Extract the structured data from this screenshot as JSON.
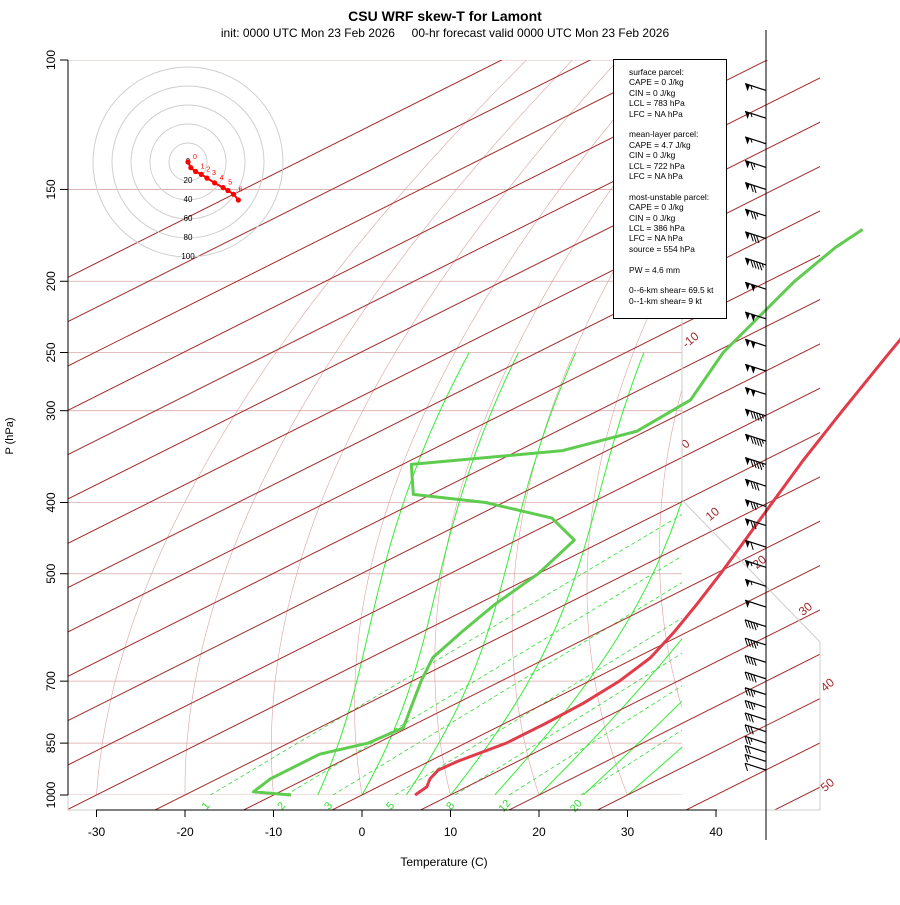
{
  "chart_data": {
    "type": "line",
    "title": "CSU WRF skew-T for Lamont",
    "subtitle": "init: 0000 UTC Mon 23 Feb 2026     00-hr forecast valid 0000 UTC Mon 23 Feb 2026",
    "xlabel": "Temperature (C)",
    "ylabel": "P (hPa)",
    "x_ticks": [
      -30,
      -20,
      -10,
      0,
      10,
      20,
      30,
      40
    ],
    "y_ticks": [
      100,
      150,
      200,
      250,
      300,
      400,
      500,
      700,
      850,
      1000
    ],
    "xlim": [
      -33,
      44
    ],
    "ylim": [
      1000,
      100
    ],
    "skew_deg_per_log_pressure": 72,
    "isotherm_labels": [
      -10,
      0,
      10,
      20,
      30,
      40,
      50
    ],
    "mixing_ratio_labels": [
      1,
      2,
      3,
      5,
      8,
      12,
      20
    ],
    "series": [
      {
        "name": "Temperature",
        "color": "#e03c4a",
        "points": [
          {
            "p": 1000,
            "t": 6.0
          },
          {
            "p": 975,
            "t": 5.5
          },
          {
            "p": 950,
            "t": 4.0
          },
          {
            "p": 925,
            "t": 3.0
          },
          {
            "p": 900,
            "t": 3.2
          },
          {
            "p": 850,
            "t": 4.6
          },
          {
            "p": 800,
            "t": 4.6
          },
          {
            "p": 750,
            "t": 4.3
          },
          {
            "p": 700,
            "t": 3.4
          },
          {
            "p": 650,
            "t": 1.6
          },
          {
            "p": 600,
            "t": -1.5
          },
          {
            "p": 550,
            "t": -5.2
          },
          {
            "p": 500,
            "t": -9.4
          },
          {
            "p": 450,
            "t": -14.2
          },
          {
            "p": 400,
            "t": -19.6
          },
          {
            "p": 350,
            "t": -25.7
          },
          {
            "p": 300,
            "t": -32.4
          },
          {
            "p": 250,
            "t": -40.2
          },
          {
            "p": 200,
            "t": -49.6
          },
          {
            "p": 175,
            "t": -54.5
          },
          {
            "p": 150,
            "t": -56.2
          },
          {
            "p": 125,
            "t": -59.2
          },
          {
            "p": 110,
            "t": -61.6
          }
        ]
      },
      {
        "name": "Dewpoint",
        "color": "#5fcc4f",
        "points": [
          {
            "p": 1000,
            "t": -8.0
          },
          {
            "p": 990,
            "t": -13.0
          },
          {
            "p": 950,
            "t": -14.0
          },
          {
            "p": 900,
            "t": -14.0
          },
          {
            "p": 880,
            "t": -14.0
          },
          {
            "p": 850,
            "t": -11.0
          },
          {
            "p": 810,
            "t": -10.5
          },
          {
            "p": 780,
            "t": -12.7
          },
          {
            "p": 700,
            "t": -19.0
          },
          {
            "p": 650,
            "t": -23.0
          },
          {
            "p": 600,
            "t": -25.5
          },
          {
            "p": 550,
            "t": -28.0
          },
          {
            "p": 500,
            "t": -30.0
          },
          {
            "p": 450,
            "t": -33.5
          },
          {
            "p": 420,
            "t": -41.0
          },
          {
            "p": 400,
            "t": -52.0
          },
          {
            "p": 390,
            "t": -62.0
          },
          {
            "p": 355,
            "t": -69.0
          },
          {
            "p": 340,
            "t": -55.0
          },
          {
            "p": 320,
            "t": -51.0
          },
          {
            "p": 290,
            "t": -52.0
          },
          {
            "p": 250,
            "t": -59.0
          },
          {
            "p": 200,
            "t": -67.0
          },
          {
            "p": 180,
            "t": -70.0
          },
          {
            "p": 170,
            "t": -71.0
          }
        ]
      }
    ],
    "hodograph": {
      "ring_labels": [
        "0",
        "20",
        "40",
        "60",
        "80",
        "100"
      ],
      "level_labels": [
        "0",
        "1",
        "2",
        "3",
        "4",
        "5",
        "6"
      ],
      "color": "#ff0000",
      "points": [
        {
          "u": 0,
          "v": 0
        },
        {
          "u": 3,
          "v": -6
        },
        {
          "u": 8,
          "v": -10
        },
        {
          "u": 14,
          "v": -13
        },
        {
          "u": 20,
          "v": -17
        },
        {
          "u": 28,
          "v": -22
        },
        {
          "u": 37,
          "v": -27
        },
        {
          "u": 42,
          "v": -30
        },
        {
          "u": 48,
          "v": -34
        },
        {
          "u": 53,
          "v": -40
        }
      ]
    },
    "wind_barbs": [
      {
        "p": 110,
        "speed": 55
      },
      {
        "p": 120,
        "speed": 55
      },
      {
        "p": 130,
        "speed": 55
      },
      {
        "p": 140,
        "speed": 65
      },
      {
        "p": 150,
        "speed": 70
      },
      {
        "p": 163,
        "speed": 75
      },
      {
        "p": 175,
        "speed": 80
      },
      {
        "p": 190,
        "speed": 95
      },
      {
        "p": 205,
        "speed": 100
      },
      {
        "p": 225,
        "speed": 100
      },
      {
        "p": 245,
        "speed": 100
      },
      {
        "p": 265,
        "speed": 100
      },
      {
        "p": 285,
        "speed": 100
      },
      {
        "p": 305,
        "speed": 95
      },
      {
        "p": 330,
        "speed": 95
      },
      {
        "p": 355,
        "speed": 95
      },
      {
        "p": 380,
        "speed": 80
      },
      {
        "p": 405,
        "speed": 75
      },
      {
        "p": 430,
        "speed": 70
      },
      {
        "p": 460,
        "speed": 60
      },
      {
        "p": 490,
        "speed": 55
      },
      {
        "p": 520,
        "speed": 55
      },
      {
        "p": 555,
        "speed": 50
      },
      {
        "p": 590,
        "speed": 45
      },
      {
        "p": 625,
        "speed": 45
      },
      {
        "p": 660,
        "speed": 40
      },
      {
        "p": 695,
        "speed": 40
      },
      {
        "p": 730,
        "speed": 35
      },
      {
        "p": 760,
        "speed": 35
      },
      {
        "p": 790,
        "speed": 30
      },
      {
        "p": 820,
        "speed": 30
      },
      {
        "p": 850,
        "speed": 25
      },
      {
        "p": 875,
        "speed": 20
      },
      {
        "p": 900,
        "speed": 15
      },
      {
        "p": 925,
        "speed": 10
      }
    ],
    "indices_box": [
      "surface parcel:",
      "CAPE = 0 J/kg",
      "CIN = 0 J/kg",
      "LCL = 783 hPa",
      "LFC = NA hPa",
      "",
      "mean-layer parcel:",
      "CAPE = 4.7 J/kg",
      "CIN = 0 J/kg",
      "LCL = 722 hPa",
      "LFC = NA hPa",
      "",
      "most-unstable parcel:",
      "CAPE = 0 J/kg",
      "CIN = 0 J/kg",
      "LCL = 386 hPa",
      "LFC = NA hPa",
      "source = 554 hPa",
      "",
      "PW =  4.6 mm",
      "",
      "0--6-km shear= 69.5 kt",
      "0--1-km shear= 9 kt"
    ],
    "colors": {
      "isotherm": "#a52a2a",
      "isobar": "#d8a8a8",
      "dry_adiabat": "#e0a0a0",
      "moist_adiabat": "#33ee33",
      "mixing_ratio": "#33dd33",
      "temperature": "#e03c4a",
      "dewpoint": "#5fcc4f"
    }
  }
}
